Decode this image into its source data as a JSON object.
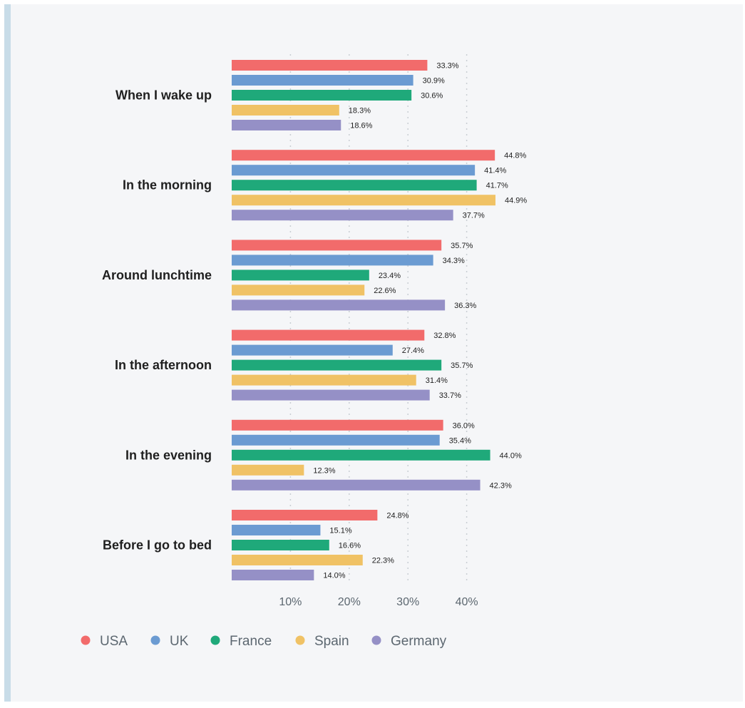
{
  "chart_data": {
    "type": "bar",
    "orientation": "horizontal",
    "categories": [
      "When I wake up",
      "In the morning",
      "Around lunchtime",
      "In the afternoon",
      "In the evening",
      "Before I go to bed"
    ],
    "series": [
      {
        "name": "USA",
        "color": "#f26b6b",
        "values": [
          33.3,
          44.8,
          35.7,
          32.8,
          36.0,
          24.8
        ]
      },
      {
        "name": "UK",
        "color": "#6b9bd2",
        "values": [
          30.9,
          41.4,
          34.3,
          27.4,
          35.4,
          15.1
        ]
      },
      {
        "name": "France",
        "color": "#1fa97a",
        "values": [
          30.6,
          41.7,
          23.4,
          35.7,
          44.0,
          16.6
        ]
      },
      {
        "name": "Spain",
        "color": "#f0c265",
        "values": [
          18.3,
          44.9,
          22.6,
          31.4,
          12.3,
          22.3
        ]
      },
      {
        "name": "Germany",
        "color": "#9590c6",
        "values": [
          18.6,
          37.7,
          36.3,
          33.7,
          42.3,
          14.0
        ]
      }
    ],
    "value_labels": [
      [
        "33.3%",
        "30.9%",
        "30.6%",
        "18.3%",
        "18.6%"
      ],
      [
        "44.8%",
        "41.4%",
        "41.7%",
        "44.9%",
        "37.7%"
      ],
      [
        "35.7%",
        "34.3%",
        "23.4%",
        "22.6%",
        "36.3%"
      ],
      [
        "32.8%",
        "27.4%",
        "35.7%",
        "31.4%",
        "33.7%"
      ],
      [
        "36.0%",
        "35.4%",
        "44.0%",
        "12.3%",
        "42.3%"
      ],
      [
        "24.8%",
        "15.1%",
        "16.6%",
        "22.3%",
        "14.0%"
      ]
    ],
    "xticks": [
      10,
      20,
      30,
      40
    ],
    "xtick_labels": [
      "10%",
      "20%",
      "30%",
      "40%"
    ],
    "xlim": [
      0,
      45
    ],
    "grid": true,
    "legend_position": "bottom-left",
    "title": "",
    "xlabel": "",
    "ylabel": ""
  }
}
